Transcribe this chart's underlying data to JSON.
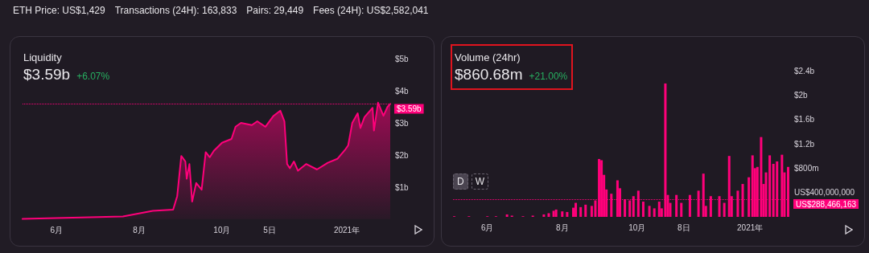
{
  "chart_data": [
    {
      "type": "other",
      "annotations": [
        "ETH Price: US$1,429",
        "Transactions (24H): 163,833",
        "Pairs: 29,449",
        "Fees (24H): US$2,582,041"
      ]
    },
    {
      "type": "area",
      "title": "Liquidity",
      "subtitle": "$3.59b",
      "annotations": [
        "+6.07%"
      ],
      "color": "#ff007a",
      "marker": "none",
      "line_style": "solid",
      "x": [
        "2020-05-07",
        "2020-07-20",
        "2020-08-11",
        "2020-08-26",
        "2020-08-29",
        "2020-09-01",
        "2020-09-04",
        "2020-09-05",
        "2020-09-07",
        "2020-09-09",
        "2020-09-12",
        "2020-09-16",
        "2020-09-19",
        "2020-09-22",
        "2020-09-25",
        "2020-10-01",
        "2020-10-08",
        "2020-10-11",
        "2020-10-15",
        "2020-10-23",
        "2020-10-27",
        "2020-11-02",
        "2020-11-08",
        "2020-11-13",
        "2020-11-16",
        "2020-11-18",
        "2020-11-20",
        "2020-11-23",
        "2020-11-26",
        "2020-12-02",
        "2020-12-10",
        "2020-12-18",
        "2020-12-25",
        "2020-12-31",
        "2021-01-02",
        "2021-01-05",
        "2021-01-09",
        "2021-01-11",
        "2021-01-14",
        "2021-01-20",
        "2021-01-21",
        "2021-01-24",
        "2021-01-28",
        "2021-01-31",
        "2021-02-02"
      ],
      "values": [
        0.01,
        0.09,
        0.26,
        0.3,
        0.72,
        1.97,
        1.8,
        1.26,
        1.72,
        0.55,
        1.13,
        0.92,
        2.09,
        1.93,
        2.13,
        2.38,
        2.5,
        2.88,
        3.0,
        2.93,
        3.05,
        2.88,
        3.22,
        3.38,
        3.05,
        1.72,
        1.59,
        1.8,
        1.51,
        1.72,
        1.55,
        1.76,
        1.88,
        2.18,
        2.3,
        3.0,
        3.3,
        2.84,
        3.18,
        3.47,
        2.76,
        3.63,
        3.22,
        3.5,
        3.59
      ],
      "xlim": [
        "2020-05-07",
        "2021-02-02"
      ],
      "xticks": [
        {
          "value": "2020-06-01",
          "label": "6月"
        },
        {
          "value": "2020-08-01",
          "label": "8月"
        },
        {
          "value": "2020-10-01",
          "label": "10月"
        },
        {
          "value": "2020-11-05",
          "label": "5日"
        },
        {
          "value": "2021-01-01",
          "label": "2021年"
        }
      ],
      "ylim": [
        0,
        5
      ],
      "yticks": [
        {
          "value": 1,
          "label": "$1b"
        },
        {
          "value": 2,
          "label": "$2b"
        },
        {
          "value": 3,
          "label": "$3b"
        },
        {
          "value": 4,
          "label": "$4b"
        },
        {
          "value": 5,
          "label": "$5b"
        }
      ],
      "ref_lines": [
        {
          "axis": "y",
          "value": 3.59,
          "label": "$3.59b",
          "color": "#ff007a",
          "line_style": "dotted"
        }
      ]
    },
    {
      "type": "bar",
      "title": "Volume (24hr)",
      "subtitle": "$860.68m",
      "annotations": [
        "+21.00%",
        "D",
        "W"
      ],
      "color": "#ff007a",
      "x": [
        "2020-05-05",
        "2020-05-17",
        "2020-06-01",
        "2020-06-08",
        "2020-06-17",
        "2020-06-21",
        "2020-06-30",
        "2020-07-08",
        "2020-07-17",
        "2020-07-21",
        "2020-07-25",
        "2020-07-27",
        "2020-08-01",
        "2020-08-05",
        "2020-08-10",
        "2020-08-12",
        "2020-08-16",
        "2020-08-20",
        "2020-08-25",
        "2020-08-28",
        "2020-08-31",
        "2020-09-02",
        "2020-09-04",
        "2020-09-06",
        "2020-09-10",
        "2020-09-15",
        "2020-09-17",
        "2020-09-21",
        "2020-09-25",
        "2020-09-28",
        "2020-10-02",
        "2020-10-06",
        "2020-10-11",
        "2020-10-15",
        "2020-10-19",
        "2020-10-21",
        "2020-10-24",
        "2020-10-26",
        "2020-10-28",
        "2020-11-02",
        "2020-11-06",
        "2020-11-13",
        "2020-11-20",
        "2020-11-24",
        "2020-11-26",
        "2020-11-30",
        "2020-12-07",
        "2020-12-11",
        "2020-12-15",
        "2020-12-17",
        "2020-12-22",
        "2020-12-26",
        "2020-12-31",
        "2021-01-03",
        "2021-01-05",
        "2021-01-07",
        "2021-01-10",
        "2021-01-12",
        "2021-01-14",
        "2021-01-17",
        "2021-01-20",
        "2021-01-23",
        "2021-01-27",
        "2021-01-29",
        "2021-02-01"
      ],
      "values": [
        10000000,
        10000000,
        10000000,
        10000000,
        40000000,
        20000000,
        10000000,
        20000000,
        40000000,
        60000000,
        100000000,
        120000000,
        90000000,
        80000000,
        150000000,
        230000000,
        160000000,
        200000000,
        180000000,
        270000000,
        950000000,
        930000000,
        690000000,
        450000000,
        380000000,
        600000000,
        470000000,
        290000000,
        270000000,
        340000000,
        430000000,
        250000000,
        180000000,
        140000000,
        250000000,
        140000000,
        2190000000,
        360000000,
        230000000,
        360000000,
        230000000,
        360000000,
        430000000,
        710000000,
        180000000,
        340000000,
        340000000,
        230000000,
        1000000000,
        340000000,
        430000000,
        540000000,
        650000000,
        1010000000,
        800000000,
        820000000,
        1310000000,
        540000000,
        730000000,
        1010000000,
        870000000,
        910000000,
        1020000000,
        730000000,
        820000000
      ],
      "xlim": [
        "2020-05-04",
        "2021-02-02"
      ],
      "xticks": [
        {
          "value": "2020-06-01",
          "label": "6月"
        },
        {
          "value": "2020-08-01",
          "label": "8月"
        },
        {
          "value": "2020-10-01",
          "label": "10月"
        },
        {
          "value": "2020-11-08",
          "label": "8日"
        },
        {
          "value": "2021-01-01",
          "label": "2021年"
        }
      ],
      "ylim": [
        0,
        2400000000
      ],
      "yticks": [
        {
          "value": 400000000,
          "label": "US$400,000,000"
        },
        {
          "value": 800000000,
          "label": "$800m"
        },
        {
          "value": 1200000000,
          "label": "$1.2b"
        },
        {
          "value": 1600000000,
          "label": "$1.6b"
        },
        {
          "value": 2000000000,
          "label": "$2b"
        },
        {
          "value": 2400000000,
          "label": "$2.4b"
        }
      ],
      "ref_lines": [
        {
          "axis": "y",
          "value": 288466163,
          "label": "US$288,466,163",
          "color": "#ff007a",
          "line_style": "dotted"
        }
      ]
    }
  ]
}
